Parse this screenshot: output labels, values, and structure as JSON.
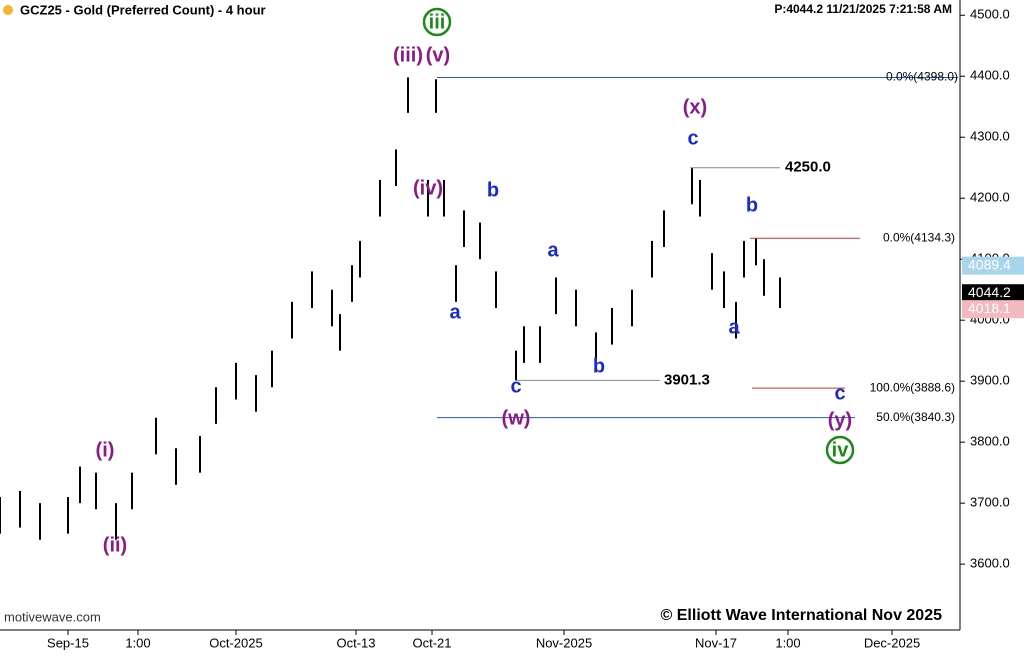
{
  "chart_data": {
    "type": "ohlc",
    "title": "GCZ25 - Gold (Preferred Count) - 4 hour",
    "status": "P:4044.2  11/21/2025 7:21:58 AM",
    "source": "motivewave.com",
    "copyright": "© Elliott Wave International Nov 2025",
    "color": "#000000",
    "xlim": [
      0,
      240
    ],
    "ylim": [
      3492,
      4525
    ],
    "xticks": [
      {
        "value": 17,
        "label": "Sep-15"
      },
      {
        "value": 34.5,
        "label": "1:00"
      },
      {
        "value": 59,
        "label": "Oct-2025"
      },
      {
        "value": 89,
        "label": "Oct-13"
      },
      {
        "value": 108,
        "label": "Oct-21"
      },
      {
        "value": 141,
        "label": "Nov-2025"
      },
      {
        "value": 179,
        "label": "Nov-17"
      },
      {
        "value": 197,
        "label": "1:00"
      },
      {
        "value": 223,
        "label": "Dec-2025"
      }
    ],
    "yticks": [
      {
        "value": 3600,
        "label": "3600.0"
      },
      {
        "value": 3700,
        "label": "3700.0"
      },
      {
        "value": 3800,
        "label": "3800.0"
      },
      {
        "value": 3900,
        "label": "3900.0"
      },
      {
        "value": 4000,
        "label": "4000.0"
      },
      {
        "value": 4100,
        "label": "4100.0"
      },
      {
        "value": 4200,
        "label": "4200.0"
      },
      {
        "value": 4300,
        "label": "4300.0"
      },
      {
        "value": 4400,
        "label": "4400.0"
      },
      {
        "value": 4500,
        "label": "4500.0"
      }
    ],
    "x": [
      0,
      5,
      10,
      17,
      20,
      24,
      29,
      33,
      39,
      44,
      50,
      54,
      59,
      64,
      68,
      73,
      78,
      83,
      85,
      88,
      90,
      95,
      99,
      102,
      107,
      109,
      111,
      114,
      116,
      120,
      124,
      129,
      131,
      135,
      139,
      144,
      149,
      153,
      158,
      163,
      166,
      173,
      175,
      178,
      181,
      184,
      186,
      189,
      191,
      195
    ],
    "high": [
      3710,
      3720,
      3700,
      3710,
      3760,
      3750,
      3700,
      3750,
      3840,
      3790,
      3810,
      3890,
      3930,
      3910,
      3950,
      4030,
      4080,
      4050,
      4010,
      4090,
      4130,
      4230,
      4280,
      4398,
      4230,
      4395,
      4230,
      4090,
      4180,
      4160,
      4080,
      3950,
      3990,
      3990,
      4070,
      4050,
      3980,
      4020,
      4050,
      4130,
      4180,
      4250,
      4230,
      4110,
      4080,
      4030,
      4130,
      4134,
      4100,
      4070
    ],
    "low": [
      3650,
      3660,
      3640,
      3650,
      3700,
      3690,
      3640,
      3690,
      3780,
      3730,
      3750,
      3830,
      3870,
      3850,
      3890,
      3970,
      4020,
      3990,
      3950,
      4030,
      4070,
      4170,
      4220,
      4340,
      4170,
      4340,
      4170,
      4030,
      4120,
      4100,
      4020,
      3901,
      3930,
      3930,
      4010,
      3990,
      3920,
      3960,
      3990,
      4070,
      4120,
      4190,
      4170,
      4050,
      4020,
      3970,
      4070,
      4090,
      4040,
      4020
    ],
    "levels": [
      {
        "value": 4398,
        "label": "0.0%(4398.0)",
        "color": "#2255cc"
      },
      {
        "value": 4250,
        "label": "4250.0",
        "color": "#888888"
      },
      {
        "value": 4134.3,
        "label": "0.0%(4134.3)",
        "color": "#cc3333"
      },
      {
        "value": 3901.3,
        "label": "3901.3",
        "color": "#888888"
      },
      {
        "value": 3888.6,
        "label": "100.0%(3888.6)",
        "color": "#cc3333"
      },
      {
        "value": 3840.3,
        "label": "50.0%(3840.3)",
        "color": "#2255cc"
      }
    ],
    "price_tags": [
      {
        "value": 4089.4,
        "color": "#a8d4ec"
      },
      {
        "value": 4044.2,
        "color": "#000000"
      },
      {
        "value": 4018.1,
        "color": "#f4b8c0"
      }
    ],
    "wave_labels": [
      {
        "text": "iii",
        "color": "#1a8a1a",
        "circled": true
      },
      {
        "text": "(iii)",
        "color": "#8a1a8a"
      },
      {
        "text": "(v)",
        "color": "#8a1a8a"
      },
      {
        "text": "(iv)",
        "color": "#8a1a8a"
      },
      {
        "text": "b",
        "color": "#1a2ad0"
      },
      {
        "text": "a",
        "color": "#1a2ad0"
      },
      {
        "text": "a",
        "color": "#1a2ad0"
      },
      {
        "text": "c",
        "color": "#1a2ad0"
      },
      {
        "text": "(w)",
        "color": "#8a1a8a"
      },
      {
        "text": "b",
        "color": "#1a2ad0"
      },
      {
        "text": "(x)",
        "color": "#8a1a8a"
      },
      {
        "text": "c",
        "color": "#1a2ad0"
      },
      {
        "text": "b",
        "color": "#1a2ad0"
      },
      {
        "text": "a",
        "color": "#1a2ad0"
      },
      {
        "text": "c",
        "color": "#1a2ad0"
      },
      {
        "text": "(y)",
        "color": "#8a1a8a"
      },
      {
        "text": "iv",
        "color": "#1a8a1a",
        "circled": true
      },
      {
        "text": "(i)",
        "color": "#8a1a8a"
      },
      {
        "text": "(ii)",
        "color": "#8a1a8a"
      }
    ]
  }
}
